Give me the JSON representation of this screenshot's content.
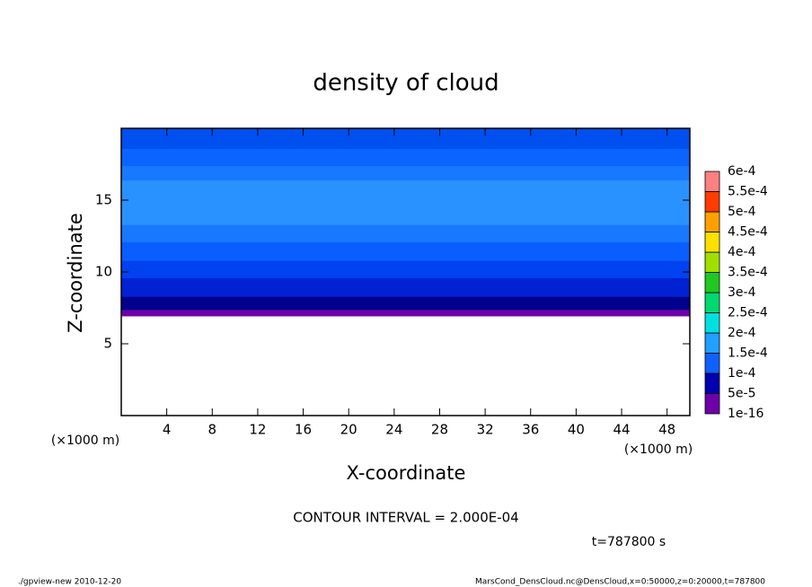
{
  "chart_data": {
    "type": "contour",
    "title": "density of cloud",
    "x_label": "X-coordinate",
    "y_label": "Z-coordinate",
    "x_unit": "(×1000 m)",
    "contour_note": "CONTOUR INTERVAL = 2.000E-04",
    "time_note": "t=787800 s",
    "footer_left": "./gpview-new   2010-12-20",
    "footer_right": "MarsCond_DensCloud.nc@DensCloud,x=0:50000,z=0:20000,t=787800",
    "xlim": [
      0,
      50
    ],
    "ylim": [
      0,
      20
    ],
    "xticks": [
      4,
      8,
      12,
      16,
      20,
      24,
      28,
      32,
      36,
      40,
      44,
      48
    ],
    "yticks": [
      5,
      10,
      15
    ],
    "bands": [
      {
        "z": [
          6.94,
          7.38
        ],
        "value": 2e-05,
        "color": "#6e00a8"
      },
      {
        "z": [
          7.38,
          8.3
        ],
        "value": 6e-05,
        "color": "#00008c"
      },
      {
        "z": [
          8.3,
          9.6
        ],
        "value": 8e-05,
        "color": "#0022d2"
      },
      {
        "z": [
          9.6,
          10.8
        ],
        "value": 0.000105,
        "color": "#0042f0"
      },
      {
        "z": [
          10.8,
          12.1
        ],
        "value": 0.000115,
        "color": "#0a5eff"
      },
      {
        "z": [
          12.1,
          13.3
        ],
        "value": 0.00013,
        "color": "#1878ff"
      },
      {
        "z": [
          13.3,
          16.4
        ],
        "value": 0.000155,
        "color": "#2a92ff"
      },
      {
        "z": [
          16.4,
          17.4
        ],
        "value": 0.00013,
        "color": "#1878ff"
      },
      {
        "z": [
          17.4,
          18.6
        ],
        "value": 0.000115,
        "color": "#0a64ff"
      },
      {
        "z": [
          18.6,
          20
        ],
        "value": 0.000105,
        "color": "#0050f0"
      }
    ],
    "colorbar": {
      "levels": [
        {
          "value": 1e-16,
          "label": "1e-16"
        },
        {
          "value": 5e-05,
          "label": "5e-5"
        },
        {
          "value": 0.0001,
          "label": "1e-4"
        },
        {
          "value": 0.00015,
          "label": "1.5e-4"
        },
        {
          "value": 0.0002,
          "label": "2e-4"
        },
        {
          "value": 0.00025,
          "label": "2.5e-4"
        },
        {
          "value": 0.0003,
          "label": "3e-4"
        },
        {
          "value": 0.00035,
          "label": "3.5e-4"
        },
        {
          "value": 0.0004,
          "label": "4e-4"
        },
        {
          "value": 0.00045,
          "label": "4.5e-4"
        },
        {
          "value": 0.0005,
          "label": "5e-4"
        },
        {
          "value": 0.00055,
          "label": "5.5e-4"
        },
        {
          "value": 0.0006,
          "label": "6e-4"
        }
      ],
      "colors": [
        "#6e00a8",
        "#0000b0",
        "#1060ff",
        "#20a0ff",
        "#00e0e0",
        "#00d870",
        "#20c820",
        "#a0e000",
        "#ffe000",
        "#ffa000",
        "#ff3c00",
        "#ff8080"
      ]
    }
  }
}
